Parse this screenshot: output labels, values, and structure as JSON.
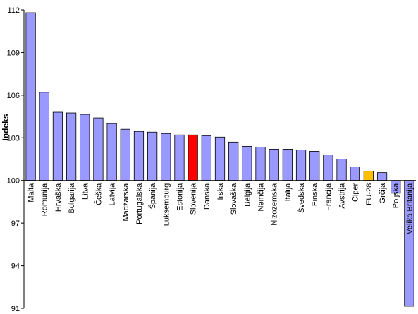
{
  "chart_data": {
    "type": "bar",
    "title": "",
    "xlabel": "",
    "ylabel": "Indeks",
    "ylim": [
      91,
      112
    ],
    "yticks": [
      "91",
      "94",
      "97",
      "100",
      "103",
      "106",
      "109",
      "112"
    ],
    "baseline": 100,
    "grid": false,
    "legend": "none",
    "categories": [
      "Malta",
      "Romunija",
      "Hrvaška",
      "Bolgarija",
      "Litva",
      "Češka",
      "Latvija",
      "Madžarska",
      "Portugalska",
      "Španija",
      "Luksemburg",
      "Estonija",
      "Slovenija",
      "Danska",
      "Irska",
      "Slovaška",
      "Belgija",
      "Nemčija",
      "Nizozemska",
      "Italija",
      "Švedska",
      "Finska",
      "Francija",
      "Avstrija",
      "Ciper",
      "EU-28",
      "Grčija",
      "Poljska",
      "Velika Britanija"
    ],
    "values": [
      111.8,
      106.2,
      104.8,
      104.75,
      104.65,
      104.4,
      104.0,
      103.6,
      103.45,
      103.4,
      103.3,
      103.2,
      103.2,
      103.15,
      103.05,
      102.7,
      102.4,
      102.35,
      102.2,
      102.2,
      102.15,
      102.05,
      101.8,
      101.5,
      100.95,
      100.65,
      100.55,
      99.1,
      91.15
    ],
    "colors": {
      "default": "#9999ff",
      "highlight": "#ff0000",
      "eu": "#ffc000",
      "border": "#000000"
    },
    "highlight_category": "Slovenija",
    "eu_category": "EU-28"
  }
}
